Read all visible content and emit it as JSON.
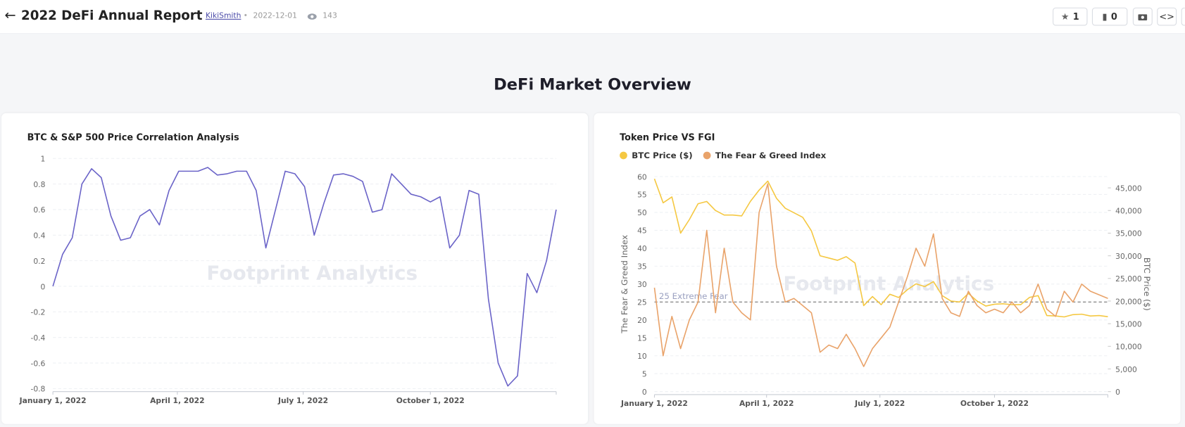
{
  "header": {
    "title": "2022 DeFi Annual Report",
    "author": "KikiSmith",
    "date": "2022-12-01",
    "views": 143,
    "stars": 1,
    "collections": 0
  },
  "section_title": "DeFi Market Overview",
  "chart_data": [
    {
      "type": "line",
      "title": "BTC & S&P 500 Price Correlation Analysis",
      "watermark": "Footprint Analytics",
      "x": [
        "2022-01-01",
        "2022-01-08",
        "2022-01-15",
        "2022-01-22",
        "2022-01-29",
        "2022-02-05",
        "2022-02-12",
        "2022-02-19",
        "2022-02-26",
        "2022-03-05",
        "2022-03-12",
        "2022-03-19",
        "2022-03-26",
        "2022-04-02",
        "2022-04-09",
        "2022-04-16",
        "2022-04-23",
        "2022-04-30",
        "2022-05-07",
        "2022-05-14",
        "2022-05-21",
        "2022-05-28",
        "2022-06-04",
        "2022-06-11",
        "2022-06-18",
        "2022-06-25",
        "2022-07-02",
        "2022-07-09",
        "2022-07-16",
        "2022-07-23",
        "2022-07-30",
        "2022-08-06",
        "2022-08-13",
        "2022-08-20",
        "2022-08-27",
        "2022-09-03",
        "2022-09-10",
        "2022-09-17",
        "2022-09-24",
        "2022-10-01",
        "2022-10-08",
        "2022-10-15",
        "2022-10-22",
        "2022-10-29",
        "2022-11-05",
        "2022-11-12",
        "2022-11-19",
        "2022-11-26",
        "2022-12-03",
        "2022-12-10",
        "2022-12-17",
        "2022-12-24",
        "2022-12-31"
      ],
      "series": [
        {
          "color": "#6b64c8",
          "values": [
            0.0,
            0.25,
            0.38,
            0.8,
            0.92,
            0.85,
            0.55,
            0.36,
            0.38,
            0.55,
            0.6,
            0.48,
            0.75,
            0.9,
            0.9,
            0.9,
            0.93,
            0.87,
            0.88,
            0.9,
            0.9,
            0.75,
            0.3,
            0.6,
            0.9,
            0.88,
            0.78,
            0.4,
            0.65,
            0.87,
            0.88,
            0.86,
            0.82,
            0.58,
            0.6,
            0.88,
            0.8,
            0.72,
            0.7,
            0.66,
            0.7,
            0.3,
            0.4,
            0.75,
            0.72,
            -0.1,
            -0.6,
            -0.78,
            -0.7,
            0.1,
            -0.05,
            0.2,
            0.6
          ]
        }
      ],
      "xlim": [
        "2022-01-01",
        "2022-12-31"
      ],
      "xticks": [
        {
          "value": "2022-01-01",
          "label": "January 1, 2022"
        },
        {
          "value": "2022-04-01",
          "label": "April 1, 2022"
        },
        {
          "value": "2022-07-01",
          "label": "July 1, 2022"
        },
        {
          "value": "2022-10-01",
          "label": "October 1, 2022"
        }
      ],
      "ylim": [
        -0.8,
        1
      ],
      "yticks": [
        -0.8,
        -0.6,
        -0.4,
        -0.2,
        0,
        0.2,
        0.4,
        0.6,
        0.8,
        1
      ],
      "grid": true
    },
    {
      "type": "line",
      "title": "Token Price VS FGI",
      "watermark": "Footprint Analytics",
      "x": [
        "2022-01-01",
        "2022-01-08",
        "2022-01-15",
        "2022-01-22",
        "2022-01-29",
        "2022-02-05",
        "2022-02-12",
        "2022-02-19",
        "2022-02-26",
        "2022-03-05",
        "2022-03-12",
        "2022-03-19",
        "2022-03-26",
        "2022-04-02",
        "2022-04-09",
        "2022-04-16",
        "2022-04-23",
        "2022-04-30",
        "2022-05-07",
        "2022-05-14",
        "2022-05-21",
        "2022-05-28",
        "2022-06-04",
        "2022-06-11",
        "2022-06-18",
        "2022-06-25",
        "2022-07-02",
        "2022-07-09",
        "2022-07-16",
        "2022-07-23",
        "2022-07-30",
        "2022-08-06",
        "2022-08-13",
        "2022-08-20",
        "2022-08-27",
        "2022-09-03",
        "2022-09-10",
        "2022-09-17",
        "2022-09-24",
        "2022-10-01",
        "2022-10-08",
        "2022-10-15",
        "2022-10-22",
        "2022-10-29",
        "2022-11-05",
        "2022-11-12",
        "2022-11-19",
        "2022-11-26",
        "2022-12-03",
        "2022-12-10",
        "2022-12-17",
        "2022-12-24",
        "2022-12-31"
      ],
      "series": [
        {
          "name": "BTC Price ($)",
          "color": "#f5c842",
          "axis": "y2",
          "values": [
            47000,
            41700,
            43000,
            35000,
            38000,
            41500,
            42000,
            40000,
            39000,
            39000,
            38800,
            42000,
            44500,
            46500,
            42700,
            40500,
            39500,
            38500,
            35500,
            30000,
            29500,
            29000,
            29800,
            28400,
            19000,
            21000,
            19200,
            21500,
            20800,
            22500,
            23800,
            23200,
            24300,
            21200,
            20000,
            19800,
            21700,
            20000,
            18900,
            19300,
            19400,
            19200,
            19200,
            20800,
            21200,
            16800,
            16700,
            16500,
            17000,
            17100,
            16700,
            16800,
            16550
          ]
        },
        {
          "name": "The Fear & Greed Index",
          "color": "#e9a36a",
          "values": [
            29,
            10,
            21,
            12,
            20,
            25,
            45,
            22,
            40,
            25,
            22,
            20,
            50,
            58,
            35,
            25,
            26,
            24,
            22,
            11,
            13,
            12,
            16,
            12,
            7,
            12,
            15,
            18,
            25,
            32,
            40,
            35,
            44,
            26,
            22,
            21,
            28,
            24,
            22,
            23,
            22,
            25,
            22,
            24,
            30,
            23,
            21,
            28,
            25,
            30,
            28,
            27,
            26
          ]
        }
      ],
      "xlim": [
        "2022-01-01",
        "2022-12-31"
      ],
      "xticks": [
        {
          "value": "2022-01-01",
          "label": "January 1, 2022"
        },
        {
          "value": "2022-04-01",
          "label": "April 1, 2022"
        },
        {
          "value": "2022-07-01",
          "label": "July 1, 2022"
        },
        {
          "value": "2022-10-01",
          "label": "October 1, 2022"
        }
      ],
      "ylabel": "The Fear & Greed Index",
      "ylim": [
        0,
        60
      ],
      "yticks": [
        0,
        5,
        10,
        15,
        20,
        25,
        30,
        35,
        40,
        45,
        50,
        55,
        60
      ],
      "y2label": "BTC Price ($)",
      "y2lim": [
        0,
        47500
      ],
      "y2ticks": [
        0,
        {
          "value": 5000,
          "label": "5,000"
        },
        {
          "value": 10000,
          "label": "10,000"
        },
        {
          "value": 15000,
          "label": "15,000"
        },
        {
          "value": 20000,
          "label": "20,000"
        },
        {
          "value": 25000,
          "label": "25,000"
        },
        {
          "value": 30000,
          "label": "30,000"
        },
        {
          "value": 35000,
          "label": "35,000"
        },
        {
          "value": 40000,
          "label": "40,000"
        },
        {
          "value": 45000,
          "label": "45,000"
        }
      ],
      "reference_line": {
        "value": 25,
        "label": "25 Extreme Fear"
      },
      "grid": true,
      "legend": "top-left"
    }
  ]
}
